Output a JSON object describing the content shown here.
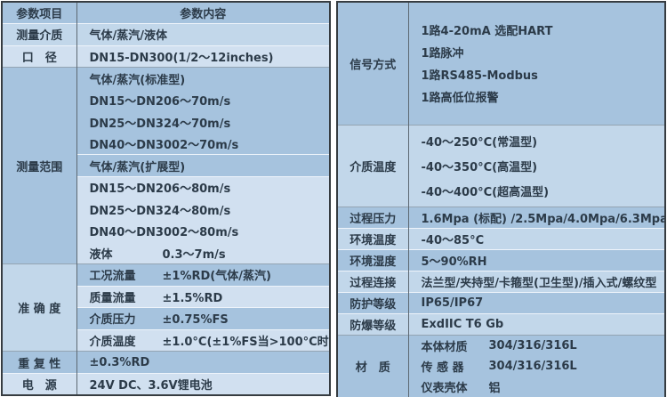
{
  "colors": {
    "shade_a": "#a6c3de",
    "shade_b": "#c2d7ea",
    "shade_c": "#d1e0f0",
    "sep_light": "#eef4fb",
    "sep_dark": "#94a4b2",
    "border_outer": "#363c41",
    "border_col": "#5d6973",
    "text": "#2c3b49"
  },
  "left_table": {
    "groups": [
      {
        "label": "参数项目",
        "label_shade": "a",
        "header": true,
        "lines": [
          {
            "cols": [
              "参数内容"
            ],
            "shade": "a"
          }
        ]
      },
      {
        "label": "测量介质",
        "label_shade": "b",
        "lines": [
          {
            "cols": [
              "气体/蒸汽/液体"
            ],
            "shade": "b",
            "sep": "light"
          }
        ]
      },
      {
        "label": "口　径",
        "label_shade": "c",
        "lines": [
          {
            "cols": [
              "DN15-DN300(1/2～12inches)"
            ],
            "shade": "c",
            "sep": "light"
          }
        ]
      },
      {
        "label": "测量范围",
        "label_shade": "a",
        "lines": [
          {
            "cols": [
              "气体/蒸汽(标准型)"
            ],
            "shade": "a",
            "sep": "dark"
          },
          {
            "cols": [
              "DN15～DN20",
              "6～70m/s"
            ],
            "shade": "a"
          },
          {
            "cols": [
              "DN25～DN32",
              "4～70m/s"
            ],
            "shade": "a"
          },
          {
            "cols": [
              "DN40～DN300",
              "2～70m/s"
            ],
            "shade": "a"
          },
          {
            "cols": [
              "气体/蒸汽(扩展型)"
            ],
            "shade": "a",
            "sep": "light"
          },
          {
            "cols": [
              "DN15～DN20",
              "6～80m/s"
            ],
            "shade": "c",
            "sep": "light"
          },
          {
            "cols": [
              "DN25～DN32",
              "4～80m/s"
            ],
            "shade": "c"
          },
          {
            "cols": [
              "DN40～DN300",
              "2～80m/s"
            ],
            "shade": "c"
          },
          {
            "cols": [
              "液体",
              "0.3～7m/s"
            ],
            "shade": "c"
          }
        ]
      },
      {
        "label": "准 确 度",
        "label_shade": "b",
        "lines": [
          {
            "cols": [
              "工况流量",
              "±1%RD(气体/蒸汽)"
            ],
            "shade": "a",
            "sep": "dark"
          },
          {
            "cols": [
              "质量流量",
              "±1.5%RD"
            ],
            "shade": "c",
            "sep": "light"
          },
          {
            "cols": [
              "介质压力",
              "±0.75%FS"
            ],
            "shade": "a",
            "sep": "light"
          },
          {
            "cols": [
              "介质温度",
              "±1.0°C(±1%FS当>100°C时)"
            ],
            "shade": "c",
            "sep": "light"
          }
        ]
      },
      {
        "label": "重 复 性",
        "label_shade": "a",
        "lines": [
          {
            "cols": [
              "±0.3%RD"
            ],
            "shade": "a",
            "sep": "dark"
          }
        ]
      },
      {
        "label": "电　源",
        "label_shade": "c",
        "lines": [
          {
            "cols": [
              "24V DC、3.6V锂电池"
            ],
            "shade": "c",
            "sep": "light"
          }
        ]
      }
    ]
  },
  "right_table": {
    "rows": [
      {
        "label": "信号方式",
        "shade": "a",
        "lines": [
          [
            "1路4-20mA 选配HART"
          ],
          [
            "1路脉冲"
          ],
          [
            "1路RS485-Modbus"
          ],
          [
            "1路高低位报警"
          ]
        ]
      },
      {
        "label": "介质温度",
        "shade": "b",
        "sep": "dark",
        "lines": [
          [
            "-40～250°C(常温型)"
          ],
          [
            "-40～350°C(高温型)"
          ],
          [
            "-40～400°C(超高温型)"
          ]
        ]
      },
      {
        "label": "过程压力",
        "shade": "a",
        "sep": "dark",
        "lines": [
          [
            "1.6Mpa (标配) /2.5Mpa/4.0Mpa/6.3Mpa"
          ]
        ]
      },
      {
        "label": "环境温度",
        "shade": "b",
        "sep": "light",
        "lines": [
          [
            "-40～85°C"
          ]
        ]
      },
      {
        "label": "环境湿度",
        "shade": "a",
        "sep": "light",
        "lines": [
          [
            "5～90%RH"
          ]
        ]
      },
      {
        "label": "过程连接",
        "shade": "b",
        "sep": "light",
        "lines": [
          [
            "法兰型/夹持型/卡箍型(卫生型)/插入式/螺纹型"
          ]
        ]
      },
      {
        "label": "防护等级",
        "shade": "a",
        "sep": "light",
        "lines": [
          [
            "IP65/IP67"
          ]
        ]
      },
      {
        "label": "防爆等级",
        "shade": "b",
        "sep": "light",
        "lines": [
          [
            "ExdIIC T6 Gb"
          ]
        ]
      },
      {
        "label": "材　质",
        "shade": "a",
        "sep": "dark",
        "lines": [
          [
            "本体材质",
            "304/316/316L"
          ],
          [
            "传 感 器",
            "304/316/316L"
          ],
          [
            "仪表壳体",
            "铝"
          ]
        ]
      }
    ]
  }
}
